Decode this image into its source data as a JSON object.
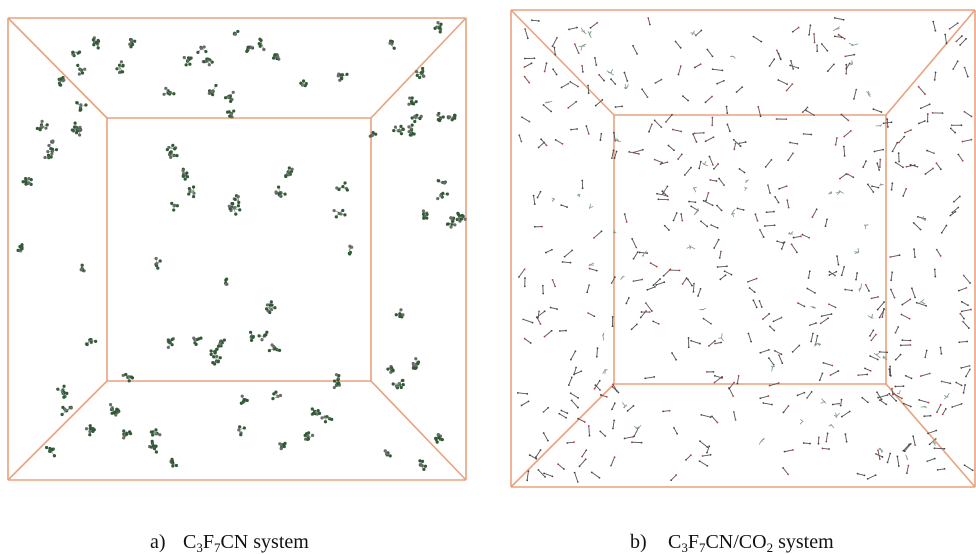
{
  "panels": [
    {
      "label": "a)",
      "formula": [
        "C",
        "3",
        "F",
        "7",
        "CN"
      ],
      "suffix": "system"
    },
    {
      "label": "b)",
      "formula": [
        "C",
        "3",
        "F",
        "7",
        "CN/CO",
        "2"
      ],
      "suffix": "system"
    }
  ]
}
